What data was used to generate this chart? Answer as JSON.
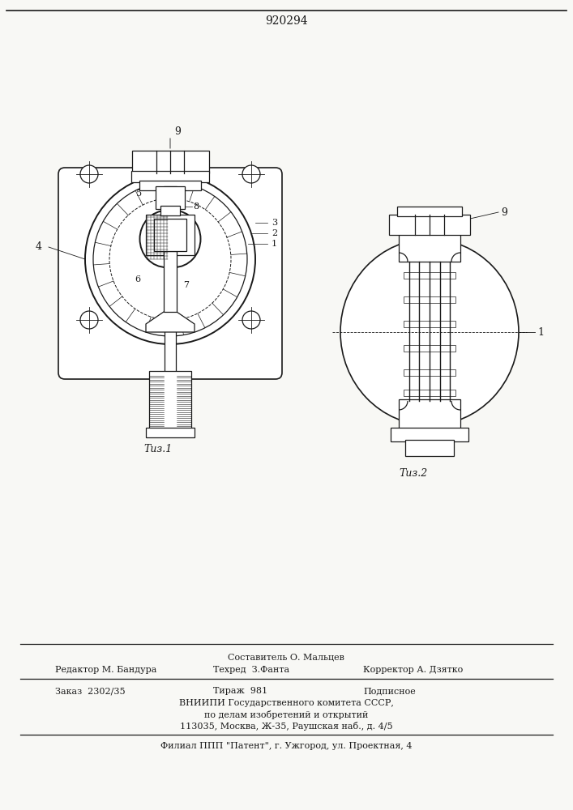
{
  "patent_number": "920294",
  "bg_color": "#f8f8f5",
  "line_color": "#1a1a1a",
  "fig1_caption": "Τиз.1",
  "fig2_caption": "Τиз.2",
  "footer_line1_center": "Составитель О. Мальцев",
  "footer_line2_left": "Редактор М. Бандура",
  "footer_line2_mid": "Техред  З.Фанта",
  "footer_line2_right": "Корректор А. Дзятко",
  "footer_line3_left": "Заказ  2302/35",
  "footer_line3_mid": "Тираж  981",
  "footer_line3_right": "Подписное",
  "footer_line4": "ВНИИПИ Государственного комитета СССР,",
  "footer_line5": "по делам изобретений и открытий",
  "footer_line6": "113035, Москва, Ж-35, Раушская наб., д. 4/5",
  "footer_line7": "Филиал ППП \"Патент\", г. Ужгород, ул. Проектная, 4"
}
